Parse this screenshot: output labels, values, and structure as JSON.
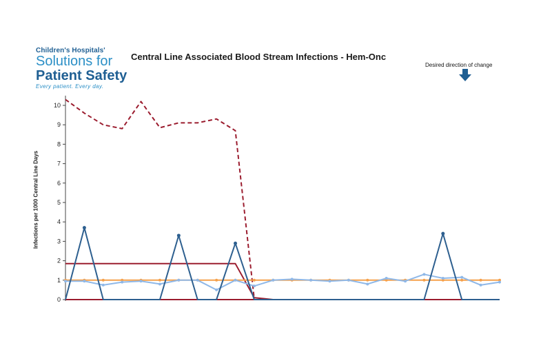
{
  "logo": {
    "line1": "Children's Hospitals'",
    "line2": "Solutions for",
    "line3": "Patient Safety",
    "line4": "Every patient. Every day."
  },
  "direction": {
    "label": "Desired direction of change",
    "icon": "arrow-down-icon",
    "color": "#1f5f93"
  },
  "chart_data": {
    "type": "line",
    "title": "Central Line Associated Blood Stream Infections - Hem-Onc",
    "ylabel": "Infections per 1000 Central Line Days",
    "xlabel": "",
    "ylim": [
      0,
      10.5
    ],
    "y_ticks": [
      0,
      1,
      2,
      3,
      4,
      5,
      6,
      7,
      8,
      9,
      10
    ],
    "x": [
      1,
      2,
      3,
      4,
      5,
      6,
      7,
      8,
      9,
      10,
      11,
      12,
      13,
      14,
      15,
      16,
      17,
      18,
      19,
      20,
      21,
      22,
      23,
      24
    ],
    "grid": false,
    "legend": "none",
    "series": [
      {
        "name": "",
        "style": "dashed",
        "color": "#9b1c2e",
        "values": [
          10.3,
          9.6,
          9.0,
          8.8,
          10.2,
          8.85,
          9.1,
          9.1,
          9.3,
          8.7,
          0.05,
          null,
          null,
          null,
          null,
          null,
          null,
          null,
          null,
          null,
          null,
          null,
          null,
          null
        ]
      },
      {
        "name": "",
        "style": "solid",
        "color": "#9b1c2e",
        "values": [
          1.85,
          1.85,
          1.85,
          1.85,
          1.85,
          1.85,
          1.85,
          1.85,
          1.85,
          1.85,
          0.1,
          0,
          0,
          0,
          0,
          0,
          0,
          0,
          0,
          0,
          0,
          0,
          0,
          0
        ]
      },
      {
        "name": "",
        "style": "solid",
        "color": "#9b1c2e",
        "values": [
          0,
          0,
          0,
          0,
          0,
          0,
          0,
          0,
          0,
          0,
          0,
          0,
          0,
          0,
          0,
          0,
          0,
          0,
          0,
          0,
          0,
          0,
          0,
          0
        ]
      },
      {
        "name": "",
        "style": "solid",
        "color": "#f5a04a",
        "markers": true,
        "values": [
          1.0,
          1.0,
          1.0,
          1.0,
          1.0,
          1.0,
          1.0,
          1.0,
          1.0,
          1.0,
          1.0,
          1.0,
          1.0,
          1.0,
          1.0,
          1.0,
          1.0,
          1.0,
          1.0,
          1.0,
          1.0,
          1.0,
          1.0,
          1.0
        ]
      },
      {
        "name": "",
        "style": "solid",
        "color": "#8fb8e8",
        "markers": true,
        "values": [
          0.95,
          0.95,
          0.75,
          0.9,
          0.95,
          0.8,
          1.0,
          1.0,
          0.5,
          1.0,
          0.7,
          1.0,
          1.05,
          1.0,
          0.95,
          1.0,
          0.8,
          1.1,
          0.95,
          1.3,
          1.1,
          1.15,
          0.75,
          0.9
        ]
      },
      {
        "name": "",
        "style": "solid",
        "color": "#2d5f8f",
        "markers": true,
        "values": [
          0,
          3.7,
          0,
          0,
          0,
          0,
          3.3,
          0,
          0,
          2.9,
          0,
          0,
          0,
          0,
          0,
          0,
          0,
          0,
          0,
          0,
          3.4,
          0,
          0,
          0
        ]
      }
    ]
  }
}
